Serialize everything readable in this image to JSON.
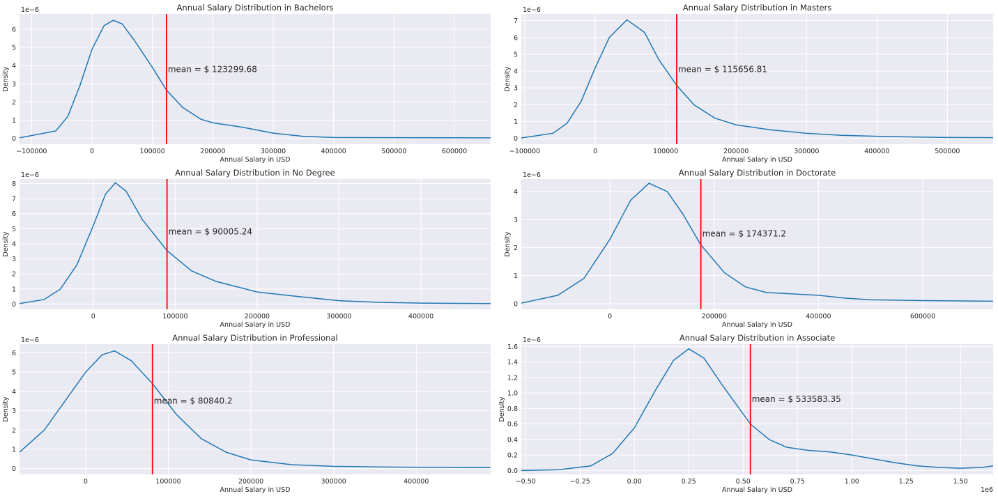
{
  "chart_data": [
    {
      "type": "line",
      "title": "Annual Salary Distribution in Bachelors",
      "xlabel": "Annual Salary in USD",
      "ylabel": "Density",
      "y_offset_label": "1e−6",
      "x_offset_label": "",
      "xlim": [
        -120000,
        660000
      ],
      "ylim": [
        -0.33,
        6.85
      ],
      "xticks": [
        -100000,
        0,
        100000,
        200000,
        300000,
        400000,
        500000,
        600000
      ],
      "xtick_labels": [
        "−100000",
        "0",
        "100000",
        "200000",
        "300000",
        "400000",
        "500000",
        "600000"
      ],
      "yticks": [
        0,
        1,
        2,
        3,
        4,
        5,
        6
      ],
      "ytick_labels": [
        "0",
        "1",
        "2",
        "3",
        "4",
        "5",
        "6"
      ],
      "grid": true,
      "line_color": "#1f77b4",
      "mean_color": "#ff0000",
      "mean_value": 123299.68,
      "mean_label": "mean = $ 123299.68",
      "annotation_y": 3.8,
      "x": [
        -120000,
        -60000,
        -40000,
        -20000,
        0,
        20000,
        35000,
        50000,
        70000,
        100000,
        123300,
        150000,
        180000,
        200000,
        250000,
        300000,
        350000,
        400000,
        500000,
        660000
      ],
      "y": [
        0.02,
        0.4,
        1.2,
        2.9,
        4.9,
        6.2,
        6.5,
        6.3,
        5.4,
        3.9,
        2.65,
        1.7,
        1.05,
        0.85,
        0.6,
        0.28,
        0.1,
        0.04,
        0.03,
        0.02
      ]
    },
    {
      "type": "line",
      "title": "Annual Salary Distribution in Masters",
      "xlabel": "Annual Salary in USD",
      "ylabel": "Density",
      "y_offset_label": "1e−6",
      "x_offset_label": "",
      "xlim": [
        -105000,
        565000
      ],
      "ylim": [
        -0.35,
        7.4
      ],
      "xticks": [
        -100000,
        0,
        100000,
        200000,
        300000,
        400000,
        500000
      ],
      "xtick_labels": [
        "−100000",
        "0",
        "100000",
        "200000",
        "300000",
        "400000",
        "500000"
      ],
      "yticks": [
        0,
        1,
        2,
        3,
        4,
        5,
        6,
        7
      ],
      "ytick_labels": [
        "0",
        "1",
        "2",
        "3",
        "4",
        "5",
        "6",
        "7"
      ],
      "grid": true,
      "line_color": "#1f77b4",
      "mean_color": "#ff0000",
      "mean_value": 115656.81,
      "mean_label": "mean = $ 115656.81",
      "annotation_y": 4.1,
      "x": [
        -105000,
        -60000,
        -40000,
        -20000,
        0,
        20000,
        45000,
        70000,
        90000,
        115657,
        140000,
        170000,
        200000,
        250000,
        300000,
        350000,
        400000,
        450000,
        500000,
        565000
      ],
      "y": [
        0.02,
        0.3,
        0.9,
        2.2,
        4.2,
        6.0,
        7.05,
        6.3,
        4.7,
        3.15,
        2.0,
        1.2,
        0.8,
        0.5,
        0.3,
        0.18,
        0.12,
        0.08,
        0.05,
        0.04
      ]
    },
    {
      "type": "line",
      "title": "Annual Salary Distribution in No Degree",
      "xlabel": "Annual Salary in USD",
      "ylabel": "Density",
      "y_offset_label": "1e−6",
      "x_offset_label": "",
      "xlim": [
        -90000,
        485000
      ],
      "ylim": [
        -0.35,
        8.3
      ],
      "xticks": [
        0,
        100000,
        200000,
        300000,
        400000
      ],
      "xtick_labels": [
        "0",
        "100000",
        "200000",
        "300000",
        "400000"
      ],
      "yticks": [
        0,
        1,
        2,
        3,
        4,
        5,
        6,
        7,
        8
      ],
      "ytick_labels": [
        "0",
        "1",
        "2",
        "3",
        "4",
        "5",
        "6",
        "7",
        "8"
      ],
      "grid": true,
      "line_color": "#1f77b4",
      "mean_color": "#ff0000",
      "mean_value": 90005.24,
      "mean_label": "mean = $ 90005.24",
      "annotation_y": 4.8,
      "x": [
        -90000,
        -60000,
        -40000,
        -20000,
        0,
        15000,
        27000,
        40000,
        60000,
        90005,
        120000,
        150000,
        200000,
        250000,
        300000,
        350000,
        400000,
        485000
      ],
      "y": [
        0.03,
        0.3,
        1.0,
        2.6,
        5.2,
        7.3,
        8.05,
        7.5,
        5.6,
        3.55,
        2.2,
        1.5,
        0.8,
        0.5,
        0.22,
        0.11,
        0.06,
        0.03
      ]
    },
    {
      "type": "line",
      "title": "Annual Salary Distribution in Doctorate",
      "xlabel": "Annual Salary in USD",
      "ylabel": "Density",
      "y_offset_label": "1e−6",
      "x_offset_label": "",
      "xlim": [
        -170000,
        735000
      ],
      "ylim": [
        -0.2,
        4.45
      ],
      "xticks": [
        0,
        200000,
        400000,
        600000
      ],
      "xtick_labels": [
        "0",
        "200000",
        "400000",
        "600000"
      ],
      "yticks": [
        0,
        1,
        2,
        3,
        4
      ],
      "ytick_labels": [
        "0",
        "1",
        "2",
        "3",
        "4"
      ],
      "grid": true,
      "line_color": "#1f77b4",
      "mean_color": "#ff0000",
      "mean_value": 174371.2,
      "mean_label": "mean = $ 174371.2",
      "annotation_y": 2.5,
      "x": [
        -170000,
        -100000,
        -50000,
        0,
        40000,
        75000,
        110000,
        140000,
        174371,
        220000,
        260000,
        300000,
        350000,
        400000,
        450000,
        500000,
        600000,
        735000
      ],
      "y": [
        0.02,
        0.3,
        0.9,
        2.3,
        3.7,
        4.3,
        4.0,
        3.2,
        2.1,
        1.1,
        0.6,
        0.4,
        0.35,
        0.3,
        0.2,
        0.14,
        0.11,
        0.09
      ]
    },
    {
      "type": "line",
      "title": "Annual Salary Distribution in Professional",
      "xlabel": "Annual Salary in USD",
      "ylabel": "Density",
      "y_offset_label": "1e−6",
      "x_offset_label": "",
      "xlim": [
        -80000,
        490000
      ],
      "ylim": [
        -0.3,
        6.45
      ],
      "xticks": [
        0,
        100000,
        200000,
        300000,
        400000
      ],
      "xtick_labels": [
        "0",
        "100000",
        "200000",
        "300000",
        "400000"
      ],
      "yticks": [
        0,
        1,
        2,
        3,
        4,
        5,
        6
      ],
      "ytick_labels": [
        "0",
        "1",
        "2",
        "3",
        "4",
        "5",
        "6"
      ],
      "grid": true,
      "line_color": "#1f77b4",
      "mean_color": "#ff0000",
      "mean_value": 80840.2,
      "mean_label": "mean = $ 80840.2",
      "annotation_y": 3.5,
      "x": [
        -80000,
        -50000,
        -25000,
        0,
        20000,
        35000,
        55000,
        80840,
        110000,
        140000,
        170000,
        200000,
        250000,
        300000,
        350000,
        400000,
        490000
      ],
      "y": [
        0.85,
        2.0,
        3.5,
        5.0,
        5.9,
        6.1,
        5.6,
        4.4,
        2.8,
        1.55,
        0.85,
        0.45,
        0.2,
        0.12,
        0.09,
        0.07,
        0.05
      ]
    },
    {
      "type": "line",
      "title": "Annual Salary Distribution in Associate",
      "xlabel": "Annual Salary in USD",
      "ylabel": "Density",
      "y_offset_label": "1e−6",
      "x_offset_label": "1e6",
      "xlim": [
        -0.52,
        1.65
      ],
      "ylim": [
        -0.05,
        1.63
      ],
      "xticks": [
        -0.5,
        -0.25,
        0.0,
        0.25,
        0.5,
        0.75,
        1.0,
        1.25,
        1.5
      ],
      "xtick_labels": [
        "−0.50",
        "−0.25",
        "0.00",
        "0.25",
        "0.50",
        "0.75",
        "1.00",
        "1.25",
        "1.50"
      ],
      "yticks": [
        0.0,
        0.2,
        0.4,
        0.6,
        0.8,
        1.0,
        1.2,
        1.4,
        1.6
      ],
      "ytick_labels": [
        "0.0",
        "0.2",
        "0.4",
        "0.6",
        "0.8",
        "1.0",
        "1.2",
        "1.4",
        "1.6"
      ],
      "grid": true,
      "line_color": "#1f77b4",
      "mean_color": "#ff0000",
      "mean_value": 0.533583,
      "mean_label": "mean = $ 533583.35",
      "annotation_y": 0.92,
      "x": [
        -0.52,
        -0.35,
        -0.2,
        -0.1,
        0.0,
        0.1,
        0.18,
        0.25,
        0.32,
        0.4,
        0.5336,
        0.62,
        0.7,
        0.8,
        0.9,
        1.0,
        1.1,
        1.2,
        1.3,
        1.4,
        1.5,
        1.6,
        1.65
      ],
      "y": [
        0.0,
        0.01,
        0.06,
        0.22,
        0.55,
        1.05,
        1.42,
        1.57,
        1.45,
        1.12,
        0.6,
        0.4,
        0.3,
        0.26,
        0.24,
        0.2,
        0.15,
        0.1,
        0.06,
        0.04,
        0.03,
        0.04,
        0.06
      ]
    }
  ]
}
